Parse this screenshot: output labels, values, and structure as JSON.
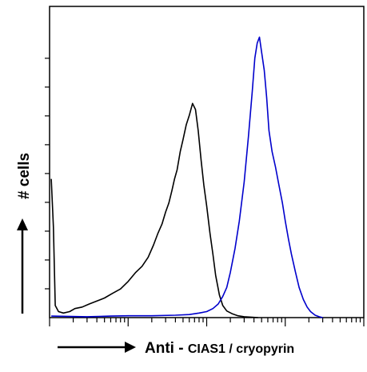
{
  "chart_data": {
    "type": "line",
    "title": "",
    "xlabel_prefix": "Anti - ",
    "xlabel_target": "CIAS1 / cryopyrin",
    "ylabel": "# cells",
    "x_scale": "log",
    "xlim": [
      1,
      10000
    ],
    "ylim": [
      0,
      100
    ],
    "grid": false,
    "legend": "none",
    "series": [
      {
        "color": "#000000",
        "x": [
          1.05,
          1.12,
          1.18,
          1.3,
          1.5,
          1.8,
          2.1,
          2.6,
          3.2,
          4,
          5,
          6.3,
          8,
          10,
          12.5,
          15,
          18,
          21,
          24,
          27,
          30,
          33,
          36,
          39,
          42,
          46,
          50,
          55,
          60,
          66,
          72,
          78,
          85,
          92,
          100,
          110,
          120,
          130,
          145,
          160,
          180,
          210,
          250,
          300,
          380,
          450
        ],
        "y": [
          46,
          30,
          4,
          2,
          1.5,
          2,
          3,
          3.5,
          4.5,
          5.5,
          6.5,
          8,
          9.5,
          12,
          15,
          17,
          20,
          24,
          28,
          31,
          35,
          38,
          42,
          46,
          49,
          55,
          59,
          64,
          67,
          71,
          69,
          62,
          52,
          44,
          37,
          28,
          21,
          14,
          7.5,
          4,
          2.2,
          1.3,
          0.6,
          0.3,
          0.1,
          0
        ]
      },
      {
        "color": "#0000cc",
        "x": [
          1.05,
          3,
          6,
          10,
          20,
          40,
          60,
          80,
          100,
          120,
          140,
          160,
          180,
          200,
          230,
          260,
          300,
          340,
          380,
          410,
          440,
          470,
          500,
          540,
          580,
          620,
          680,
          750,
          830,
          920,
          1000,
          1100,
          1200,
          1350,
          1500,
          1700,
          1900,
          2100,
          2400,
          2700,
          3000
        ],
        "y": [
          0.5,
          0.3,
          0.5,
          0.6,
          0.6,
          0.8,
          1,
          1.5,
          2,
          3,
          4.5,
          7,
          10,
          15,
          23,
          32,
          45,
          60,
          75,
          86,
          91,
          93,
          88,
          82,
          73,
          62,
          55,
          50,
          44,
          38,
          32,
          26,
          21,
          15,
          10,
          6,
          3.5,
          2,
          0.8,
          0.3,
          0
        ]
      }
    ]
  }
}
